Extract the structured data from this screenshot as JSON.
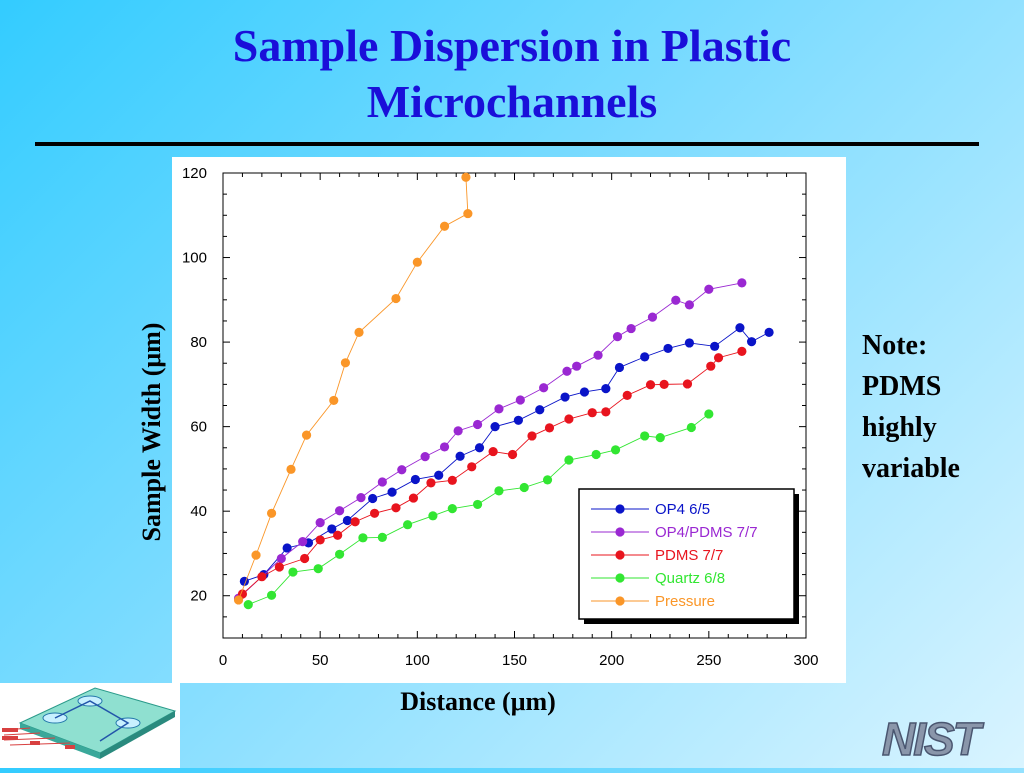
{
  "slide": {
    "title_line1": "Sample Dispersion in Plastic",
    "title_line2": "Microchannels",
    "note_lines": [
      "Note:",
      "PDMS",
      "highly",
      "variable"
    ],
    "logo_text": "NIST",
    "thumbnail_icon": "microfluidic-chip-diagram"
  },
  "chart_data": {
    "type": "line",
    "title": "",
    "xlabel": "Distance (μm)",
    "ylabel": "Sample Width (μm)",
    "xlim": [
      0,
      300
    ],
    "ylim": [
      10,
      120
    ],
    "x_ticks": [
      0,
      50,
      100,
      150,
      200,
      250,
      300
    ],
    "y_ticks": [
      20,
      40,
      60,
      80,
      100,
      120
    ],
    "grid": false,
    "legend_position": "bottom-right",
    "series": [
      {
        "name": "OP4 6/5",
        "color": "#0a14c8",
        "points": [
          [
            11,
            23.4
          ],
          [
            21,
            25
          ],
          [
            33,
            31.3
          ],
          [
            44,
            32.5
          ],
          [
            56,
            35.8
          ],
          [
            64,
            37.8
          ],
          [
            77,
            43
          ],
          [
            87,
            44.5
          ],
          [
            99,
            47.5
          ],
          [
            111,
            48.5
          ],
          [
            122,
            53
          ],
          [
            132,
            55
          ],
          [
            140,
            60
          ],
          [
            152,
            61.5
          ],
          [
            163,
            64
          ],
          [
            176,
            67
          ],
          [
            186,
            68.2
          ],
          [
            197,
            69
          ],
          [
            204,
            74
          ],
          [
            217,
            76.5
          ],
          [
            229,
            78.5
          ],
          [
            240,
            79.8
          ],
          [
            253,
            79
          ],
          [
            266,
            83.4
          ],
          [
            272,
            80.1
          ],
          [
            281,
            82.3
          ]
        ]
      },
      {
        "name": "OP4/PDMS 7/7",
        "color": "#9a28d2",
        "points": [
          [
            8,
            19.4
          ],
          [
            30,
            28.8
          ],
          [
            41,
            32.8
          ],
          [
            50,
            37.3
          ],
          [
            60,
            40.1
          ],
          [
            71,
            43.2
          ],
          [
            82,
            46.9
          ],
          [
            92,
            49.8
          ],
          [
            104,
            52.9
          ],
          [
            114,
            55.2
          ],
          [
            121,
            59
          ],
          [
            131,
            60.5
          ],
          [
            142,
            64.2
          ],
          [
            153,
            66.3
          ],
          [
            165,
            69.2
          ],
          [
            177,
            73.1
          ],
          [
            182,
            74.3
          ],
          [
            193,
            76.9
          ],
          [
            203,
            81.3
          ],
          [
            210,
            83.2
          ],
          [
            221,
            85.9
          ],
          [
            233,
            89.9
          ],
          [
            240,
            88.8
          ],
          [
            250,
            92.5
          ],
          [
            267,
            94
          ]
        ]
      },
      {
        "name": "PDMS 7/7",
        "color": "#e8141e",
        "points": [
          [
            10,
            20.4
          ],
          [
            20,
            24.5
          ],
          [
            29,
            26.8
          ],
          [
            42,
            28.8
          ],
          [
            50,
            33.2
          ],
          [
            59,
            34.3
          ],
          [
            68,
            37.5
          ],
          [
            78,
            39.5
          ],
          [
            89,
            40.8
          ],
          [
            98,
            43.1
          ],
          [
            107,
            46.7
          ],
          [
            118,
            47.3
          ],
          [
            128,
            50.5
          ],
          [
            139,
            54.1
          ],
          [
            149,
            53.4
          ],
          [
            159,
            57.8
          ],
          [
            168,
            59.7
          ],
          [
            178,
            61.8
          ],
          [
            190,
            63.3
          ],
          [
            197,
            63.5
          ],
          [
            208,
            67.4
          ],
          [
            220,
            69.9
          ],
          [
            227,
            70
          ],
          [
            239,
            70.1
          ],
          [
            251,
            74.3
          ],
          [
            255,
            76.3
          ],
          [
            267,
            77.8
          ]
        ]
      },
      {
        "name": "Quartz 6/8",
        "color": "#32e632",
        "points": [
          [
            13,
            17.9
          ],
          [
            25,
            20.1
          ],
          [
            36,
            25.6
          ],
          [
            49,
            26.4
          ],
          [
            60,
            29.8
          ],
          [
            72,
            33.7
          ],
          [
            82,
            33.8
          ],
          [
            95,
            36.8
          ],
          [
            108,
            38.9
          ],
          [
            118,
            40.6
          ],
          [
            131,
            41.6
          ],
          [
            142,
            44.8
          ],
          [
            155,
            45.6
          ],
          [
            167,
            47.4
          ],
          [
            178,
            52.1
          ],
          [
            192,
            53.4
          ],
          [
            202,
            54.5
          ],
          [
            217,
            57.8
          ],
          [
            225,
            57.4
          ],
          [
            241,
            59.8
          ],
          [
            250,
            63
          ]
        ]
      },
      {
        "name": "Pressure",
        "color": "#fa9628",
        "points": [
          [
            8,
            19
          ],
          [
            17,
            29.6
          ],
          [
            25,
            39.5
          ],
          [
            35,
            49.9
          ],
          [
            43,
            58
          ],
          [
            57,
            66.2
          ],
          [
            63,
            75.1
          ],
          [
            70,
            82.3
          ],
          [
            89,
            90.3
          ],
          [
            100,
            98.9
          ],
          [
            114,
            107.4
          ],
          [
            126,
            110.4
          ],
          [
            125,
            119
          ]
        ]
      }
    ]
  }
}
